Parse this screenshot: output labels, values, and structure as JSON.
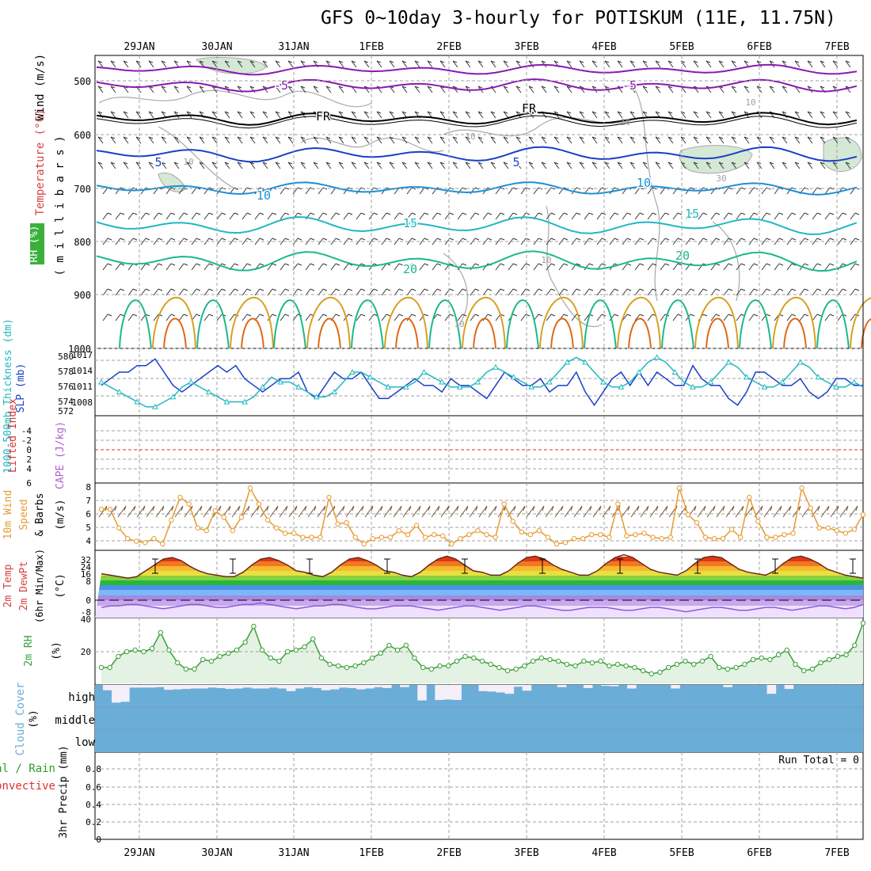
{
  "title": "GFS 0~10day 3-hourly for POTISKUM (11E, 11.75N)",
  "dates": [
    "29JAN",
    "30JAN",
    "31JAN",
    "1FEB",
    "2FEB",
    "3FEB",
    "4FEB",
    "5FEB",
    "6FEB",
    "7FEB"
  ],
  "panels": {
    "upper": {
      "labels": {
        "wind": "Wind (m/s)",
        "temperature": "Temperature (°C)",
        "rh": "RH (%)",
        "pressure": "( m i l l i b a r s )"
      },
      "y_ticks": [
        "500",
        "600",
        "700",
        "800",
        "900",
        "1000"
      ],
      "temp_contour_labels": [
        "-5",
        "-5",
        "FR",
        "FR",
        "5",
        "5",
        "10",
        "10",
        "15",
        "15",
        "20",
        "20"
      ],
      "rh_contour_labels": [
        "10",
        "10",
        "10",
        "10",
        "30",
        "10",
        "10"
      ]
    },
    "thickness": {
      "labels": {
        "thickness": "1000-500mb Thickness (dm)",
        "slp": "SLP (mb)"
      },
      "thickness_ticks": [
        "572",
        "574",
        "576",
        "578",
        "580"
      ],
      "slp_ticks": [
        "1008",
        "1011",
        "1014",
        "1017"
      ]
    },
    "stability": {
      "labels": {
        "li": "Lifted Index",
        "cape": "CAPE (J/kg)"
      },
      "y_ticks": [
        "-4",
        "-2",
        "0",
        "2",
        "4",
        "6"
      ]
    },
    "wind10m": {
      "labels": {
        "a": "10m Wind",
        "b": "Speed",
        "c": "& Barbs",
        "unit": "(m/s)"
      },
      "y_ticks": [
        "4",
        "5",
        "6",
        "7",
        "8"
      ]
    },
    "temp2m": {
      "labels": {
        "a": "2m Temp",
        "b": "2m DewPt",
        "c": "(6hr Min/Max)",
        "unit": "(°C)"
      },
      "y_ticks": [
        "32",
        "24",
        "16",
        "8",
        "0",
        "-8"
      ]
    },
    "rh2m": {
      "labels": {
        "a": "2m RH",
        "unit": "(%)"
      },
      "y_ticks": [
        "40",
        "20"
      ]
    },
    "cloud": {
      "labels": {
        "a": "Cloud Cover",
        "unit": "(%)"
      },
      "y_ticks": [
        "high",
        "middle",
        "low"
      ]
    },
    "precip": {
      "labels": {
        "a": "Total / Rain",
        "b": "Convective",
        "c": "3hr Precip (mm)"
      },
      "y_ticks": [
        "0",
        "0.2",
        "0.4",
        "0.6",
        "0.8"
      ],
      "run_total": "Run Total = 0"
    }
  },
  "colors": {
    "slp": "#1a3fc8",
    "thickness": "#20b8c0",
    "wind10m": "#e89a30",
    "rh2m": "#3aa03a",
    "cloud": "#6aaed8",
    "li": "#d83030",
    "cape": "#b060d0",
    "dewpt": "#8a5fd0"
  },
  "chart_data": [
    {
      "type": "line",
      "name": "thickness",
      "ylim": [
        572,
        581
      ],
      "values": [
        576,
        577,
        578,
        578,
        579,
        579,
        580,
        578,
        576,
        575,
        576,
        577,
        578,
        579,
        578,
        579,
        577,
        576,
        575,
        576,
        577,
        577,
        578,
        575,
        574,
        576,
        578,
        577,
        577,
        578,
        576,
        574,
        574,
        575,
        576,
        577,
        576,
        576,
        575,
        577,
        576,
        576,
        575,
        574,
        576,
        578,
        577,
        576,
        576,
        577,
        575,
        576,
        576,
        578,
        575,
        573,
        575,
        577,
        578,
        576,
        578,
        576,
        578,
        577,
        576,
        576,
        579,
        577,
        576,
        576,
        574,
        573,
        575,
        578,
        578,
        577,
        576,
        576,
        577,
        575,
        574,
        575,
        577,
        577,
        576,
        576
      ]
    },
    {
      "type": "line",
      "name": "slp",
      "ylim": [
        1006,
        1018
      ],
      "values": [
        1012,
        1011,
        1010,
        1009,
        1008,
        1007,
        1007,
        1008,
        1009,
        1011,
        1012,
        1011,
        1010,
        1009,
        1008,
        1008,
        1008,
        1009,
        1011,
        1013,
        1012,
        1012,
        1011,
        1010,
        1009,
        1009,
        1010,
        1012,
        1014,
        1014,
        1013,
        1012,
        1011,
        1011,
        1011,
        1012,
        1014,
        1013,
        1012,
        1011,
        1011,
        1011,
        1012,
        1014,
        1015,
        1014,
        1013,
        1012,
        1011,
        1011,
        1012,
        1014,
        1016,
        1017,
        1016,
        1014,
        1012,
        1011,
        1011,
        1012,
        1014,
        1016,
        1017,
        1016,
        1014,
        1012,
        1011,
        1011,
        1012,
        1014,
        1016,
        1015,
        1013,
        1012,
        1011,
        1011,
        1012,
        1014,
        1016,
        1015,
        1013,
        1012,
        1011,
        1011,
        1012,
        1011
      ]
    },
    {
      "type": "line",
      "name": "10m wind speed",
      "ylim": [
        3.5,
        8.2
      ],
      "values": [
        6.4,
        6.4,
        5,
        4.2,
        4,
        3.9,
        4.2,
        3.8,
        5.6,
        7.3,
        6.8,
        5,
        4.8,
        6.3,
        5.8,
        4.8,
        5.8,
        8,
        6.8,
        5.6,
        5,
        4.6,
        4.6,
        4.3,
        4.3,
        4.3,
        7.3,
        5.3,
        5.4,
        4.3,
        3.8,
        4.2,
        4.3,
        4.3,
        4.8,
        4.5,
        5.2,
        4.3,
        4.5,
        4.4,
        3.8,
        4.2,
        4.5,
        4.8,
        4.5,
        4.3,
        6.8,
        5.5,
        4.7,
        4.5,
        4.8,
        4.3,
        3.8,
        3.9,
        4.2,
        4.2,
        4.5,
        4.5,
        4.3,
        6.8,
        4.4,
        4.5,
        4.6,
        4.3,
        4.2,
        4.3,
        8,
        6,
        5.4,
        4.3,
        4.2,
        4.2,
        4.9,
        4.3,
        7.3,
        5.5,
        4.3,
        4.3,
        4.5,
        4.6,
        8,
        6.5,
        5,
        5,
        4.8,
        4.6,
        4.9,
        6
      ]
    },
    {
      "type": "line",
      "name": "2m RH",
      "ylim": [
        0,
        40
      ],
      "values": [
        10,
        10,
        17,
        20,
        21,
        20,
        22,
        32,
        21,
        13,
        9,
        9,
        15,
        14,
        17,
        19,
        21,
        26,
        36,
        21,
        16,
        14,
        20,
        21,
        23,
        28,
        16,
        12,
        11,
        10,
        11,
        13,
        16,
        19,
        24,
        21,
        24,
        16,
        10,
        9,
        11,
        11,
        14,
        17,
        16,
        14,
        12,
        10,
        8,
        9,
        11,
        14,
        16,
        15,
        14,
        12,
        11,
        14,
        13,
        14,
        11,
        12,
        11,
        10,
        8,
        6,
        7,
        10,
        12,
        14,
        12,
        14,
        17,
        10,
        9,
        10,
        12,
        15,
        16,
        15,
        18,
        21,
        12,
        8,
        9,
        13,
        15,
        17,
        18,
        24,
        38
      ]
    },
    {
      "type": "area",
      "name": "2m temp",
      "ylim": [
        -10,
        36
      ],
      "values": [
        20,
        19,
        18,
        17,
        18,
        22,
        26,
        30,
        31,
        29,
        25,
        22,
        20,
        19,
        18,
        18,
        21,
        26,
        30,
        31,
        29,
        26,
        22,
        21,
        19,
        18,
        21,
        26,
        30,
        31,
        29,
        26,
        22,
        21,
        19,
        18,
        21,
        26,
        30,
        32,
        30,
        26,
        22,
        21,
        19,
        19,
        22,
        27,
        31,
        32,
        30,
        26,
        23,
        21,
        19,
        19,
        22,
        27,
        31,
        33,
        31,
        27,
        23,
        21,
        20,
        19,
        22,
        27,
        31,
        32,
        31,
        27,
        23,
        21,
        20,
        19,
        22,
        27,
        31,
        32,
        30,
        27,
        23,
        21,
        19,
        18,
        17
      ]
    },
    {
      "type": "line",
      "name": "2m dewpt",
      "ylim": [
        -10,
        36
      ],
      "values": [
        -3,
        -2,
        -2,
        -1,
        -1,
        -2,
        -3,
        -4,
        -3,
        -2,
        -1,
        -1,
        -2,
        -3,
        -3,
        -2,
        -1,
        -1,
        0,
        -1,
        -2,
        -3,
        -4,
        -3,
        -2,
        -2,
        -1,
        -1,
        -2,
        -3,
        -4,
        -4,
        -3,
        -2,
        -2,
        -2,
        -3,
        -4,
        -5,
        -4,
        -3,
        -2,
        -2,
        -3,
        -4,
        -5,
        -4,
        -3,
        -2,
        -2,
        -3,
        -4,
        -5,
        -5,
        -4,
        -3,
        -3,
        -3,
        -4,
        -5,
        -5,
        -4,
        -3,
        -3,
        -4,
        -5,
        -6,
        -5,
        -4,
        -3,
        -3,
        -4,
        -5,
        -5,
        -4,
        -3,
        -3,
        -4,
        -5,
        -4,
        -3,
        -2,
        -2,
        -3,
        -4,
        -3,
        -1
      ]
    },
    {
      "type": "bar",
      "name": "high cloud cover",
      "ylim": [
        0,
        100
      ],
      "values": [
        76,
        20,
        24,
        88,
        88,
        88,
        90,
        78,
        80,
        82,
        84,
        84,
        88,
        86,
        82,
        84,
        88,
        84,
        84,
        88,
        84,
        72,
        84,
        90,
        86,
        76,
        80,
        88,
        86,
        80,
        84,
        90,
        86,
        100,
        90,
        100,
        30,
        100,
        32,
        34,
        32,
        100,
        100,
        72,
        70,
        66,
        60,
        92,
        74,
        100,
        100,
        100,
        90,
        100,
        100,
        86,
        100,
        96,
        94,
        100,
        84,
        100,
        100,
        100,
        100,
        84,
        100,
        100,
        100,
        100,
        100,
        90,
        100,
        100,
        100,
        100,
        60,
        100,
        82,
        100,
        100,
        100,
        100,
        100,
        100,
        100,
        100
      ]
    }
  ]
}
